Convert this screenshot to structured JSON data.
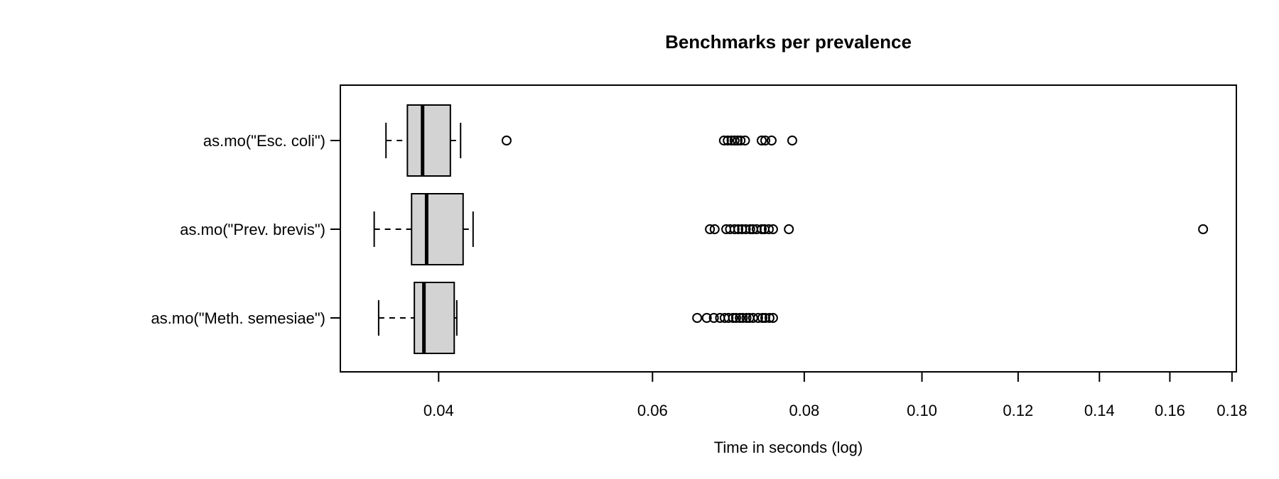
{
  "figure": {
    "background": "#ffffff"
  },
  "chart_data": {
    "type": "boxplot",
    "orientation": "horizontal",
    "title": "Benchmarks per prevalence",
    "xlabel": "Time in seconds (log)",
    "ylabel": "",
    "x_scale": "log10",
    "xlim": [
      0.0332,
      0.1815
    ],
    "x_ticks": [
      0.04,
      0.06,
      0.08,
      0.1,
      0.12,
      0.14,
      0.16,
      0.18
    ],
    "x_tick_labels": [
      "0.04",
      "0.06",
      "0.08",
      "0.10",
      "0.12",
      "0.14",
      "0.16",
      "0.18"
    ],
    "grid": false,
    "legend": false,
    "colors": {
      "box_fill": "#d3d3d3",
      "stroke": "#000000",
      "text": "#000000",
      "background": "#ffffff"
    },
    "categories": [
      "as.mo(\"Esc. coli\")",
      "as.mo(\"Prev. brevis\")",
      "as.mo(\"Meth. semesiae\")"
    ],
    "series": [
      {
        "name": "as.mo(\"Esc. coli\")",
        "whisker_low": 0.0362,
        "q1": 0.0377,
        "median": 0.0388,
        "q3": 0.0409,
        "whisker_high": 0.0417,
        "outliers": [
          0.0455,
          0.0687,
          0.0692,
          0.0697,
          0.0701,
          0.0705,
          0.0709,
          0.0715,
          0.0738,
          0.0743,
          0.0752,
          0.0782
        ]
      },
      {
        "name": "as.mo(\"Prev. brevis\")",
        "whisker_low": 0.0354,
        "q1": 0.038,
        "median": 0.0391,
        "q3": 0.0419,
        "whisker_high": 0.0427,
        "outliers": [
          0.0669,
          0.0675,
          0.069,
          0.0695,
          0.0701,
          0.0706,
          0.0711,
          0.0716,
          0.0722,
          0.0726,
          0.0731,
          0.0738,
          0.0742,
          0.0748,
          0.0754,
          0.0777,
          0.1704
        ]
      },
      {
        "name": "as.mo(\"Meth. semesiae\")",
        "whisker_low": 0.0357,
        "q1": 0.0382,
        "median": 0.0389,
        "q3": 0.0412,
        "whisker_high": 0.0414,
        "outliers": [
          0.0653,
          0.0665,
          0.0674,
          0.0682,
          0.0688,
          0.0693,
          0.0699,
          0.0703,
          0.0708,
          0.0712,
          0.0717,
          0.0721,
          0.0726,
          0.0733,
          0.0739,
          0.0743,
          0.0749,
          0.0754
        ]
      }
    ]
  }
}
